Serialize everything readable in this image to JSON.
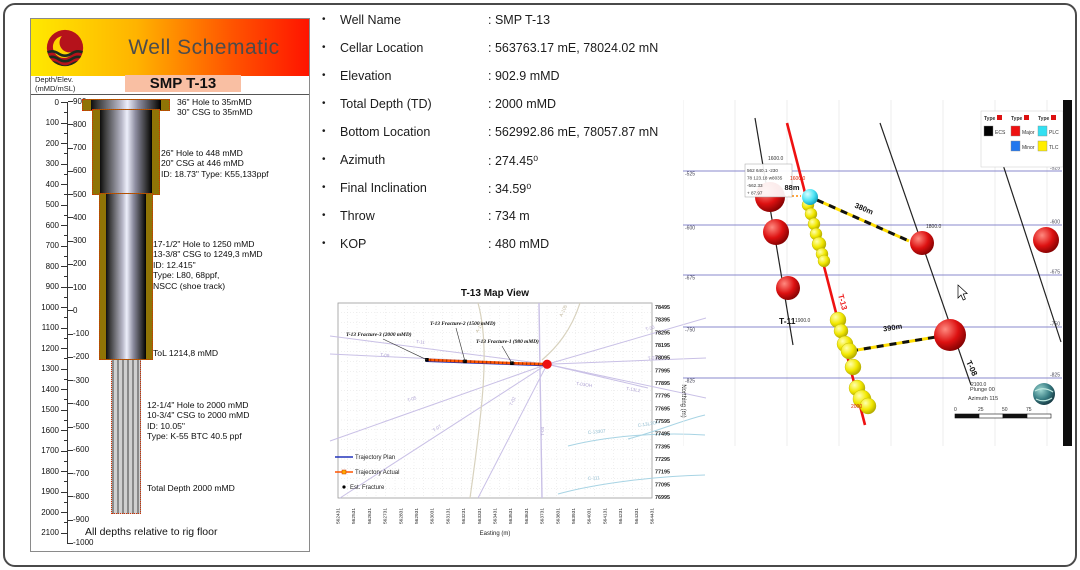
{
  "schematic": {
    "header_title": "Well Schematic",
    "well_name": "SMP T-13",
    "scale_label": [
      "Depth/Elev.",
      "(mMD/mSL)"
    ],
    "depth_ticks": [
      "0",
      "100",
      "200",
      "300",
      "400",
      "500",
      "600",
      "700",
      "800",
      "900",
      "1000",
      "1100",
      "1200",
      "1300",
      "1400",
      "1500",
      "1600",
      "1700",
      "1800",
      "1900",
      "2000",
      "2100"
    ],
    "elev_ticks": [
      "900",
      "800",
      "700",
      "600",
      "500",
      "400",
      "300",
      "200",
      "100",
      "0",
      "-100",
      "-200",
      "-300",
      "-400",
      "-500",
      "-600",
      "-700",
      "-800",
      "-900",
      "-1000"
    ],
    "annotations": [
      {
        "lines": [
          "36\" Hole to 35mMD",
          "30\" CSG to 35mMD"
        ]
      },
      {
        "lines": [
          "26\" Hole to 448 mMD",
          "20\" CSG at 446 mMD",
          "ID: 18.73\" Type: K55,133ppf"
        ]
      },
      {
        "lines": [
          "17-1/2\" Hole to 1250 mMD",
          "13-3/8\" CSG to 1249,3 mMD",
          "ID: 12.415\"",
          "Type: L80, 68ppf,",
          "NSCC (shoe track)"
        ]
      },
      {
        "lines": [
          "ToL 1214,8 mMD"
        ]
      },
      {
        "lines": [
          "12-1/4\" Hole to 2000 mMD",
          "10-3/4\" CSG to 2000 mMD",
          "ID: 10.05\"",
          "Type: K-55 BTC 40.5 ppf"
        ]
      },
      {
        "lines": [
          "Total Depth 2000 mMD"
        ]
      }
    ],
    "footnote": "All depths relative to rig floor"
  },
  "well_info": {
    "items": [
      {
        "label": "Well Name",
        "value": ": SMP T-13"
      },
      {
        "label": "Cellar Location",
        "value": ": 563763.17 mE, 78024.02 mN"
      },
      {
        "label": "Elevation",
        "value": ": 902.9 mMD"
      },
      {
        "label": "Total Depth (TD)",
        "value": ": 2000 mMD"
      },
      {
        "label": "Bottom Location",
        "value": ": 562992.86 mE, 78057.87 mN"
      },
      {
        "label": "Azimuth",
        "value": ": 274.45⁰"
      },
      {
        "label": "Final Inclination",
        "value": ": 34.59⁰"
      },
      {
        "label": "Throw",
        "value": ": 734 m"
      },
      {
        "label": "KOP",
        "value": ": 480 mMD"
      }
    ]
  },
  "map_view": {
    "title": "T-13 Map View",
    "xlabel": "Easting (m)",
    "ylabel": "Northing (m)",
    "y_ticks": [
      "78495",
      "78395",
      "78295",
      "78195",
      "78095",
      "77995",
      "77895",
      "77795",
      "77695",
      "77595",
      "77495",
      "77395",
      "77295",
      "77195",
      "77095",
      "76995"
    ],
    "x_ticks": [
      "562431",
      "562531",
      "562631",
      "562731",
      "562831",
      "562931",
      "563031",
      "563131",
      "563231",
      "563331",
      "563431",
      "563531",
      "563631",
      "563731",
      "563831",
      "563931",
      "564031",
      "564131",
      "564231",
      "564331",
      "564431"
    ],
    "legend": [
      "Trajectory Plan",
      "Trajectory Actual",
      "Est. Fracture"
    ],
    "fracture_labels": [
      "T-13 Fracture-3 (2000 mMD)",
      "T-13 Fracture-2 (1500 mMD)",
      "T-13 Fracture-1 (980 mMD)"
    ],
    "field_labels": [
      "T-11",
      "T-09",
      "T-05",
      "T-07",
      "T-02",
      "T-04",
      "T-30",
      "T-03L3",
      "T-03OH",
      "T-13L2",
      "A-107",
      "A-105",
      "C-13307",
      "C-13L3OH",
      "C-111"
    ]
  },
  "cross_section": {
    "legend_headers": [
      "Type",
      "Type",
      "Type"
    ],
    "legend_entries": [
      {
        "label": "ECS",
        "color": "#000000"
      },
      {
        "label": "Major",
        "color": "#ee1111"
      },
      {
        "label": "Minor",
        "color": "#2277ee"
      },
      {
        "label": "PLC",
        "color": "#33e0f2"
      },
      {
        "label": "TLC",
        "color": "#ffee00"
      }
    ],
    "elevation_labels": [
      "-525",
      "-600",
      "-675",
      "-750",
      "-825"
    ],
    "well_labels": [
      "T-11",
      "T-13",
      "T-08"
    ],
    "depth_labels": [
      "1600.0",
      "1600.0",
      "1800.0",
      "1900.0",
      "2000",
      "2100.0"
    ],
    "distance_labels": [
      "88m",
      "380m",
      "390m"
    ],
    "callout_lines": [
      "562 640.1  -230",
      "78 123.18  w8035",
      "-562.33",
      "+ 87.97"
    ],
    "compass": {
      "plunge": "Plunge 00",
      "azimuth": "Azimuth 115",
      "scale_labels": [
        "0",
        "25",
        "50",
        "75"
      ]
    }
  },
  "chart_data": {
    "type": "line",
    "title": "T-13 Map View",
    "xlabel": "Easting (m)",
    "ylabel": "Northing (m)",
    "xlim": [
      562431,
      564431
    ],
    "ylim": [
      76995,
      78495
    ],
    "grid": true,
    "legend_position": "left-bottom",
    "series": [
      {
        "name": "Trajectory Plan",
        "color": "#2233bb",
        "x": [
          563763,
          562992
        ],
        "y": [
          78024,
          78058
        ]
      },
      {
        "name": "Trajectory Actual",
        "color": "#ff5500",
        "x": [
          563763,
          563539,
          563240,
          562992
        ],
        "y": [
          78024,
          78032,
          78046,
          78058
        ]
      },
      {
        "name": "Est. Fracture",
        "color": "#000000",
        "x": [
          563539,
          563240,
          562997
        ],
        "y": [
          78032,
          78046,
          78058
        ],
        "point_labels": [
          "T-13 Fracture-1 (980 mMD)",
          "T-13 Fracture-2 (1500 mMD)",
          "T-13 Fracture-3 (2000 mMD)"
        ]
      }
    ]
  }
}
